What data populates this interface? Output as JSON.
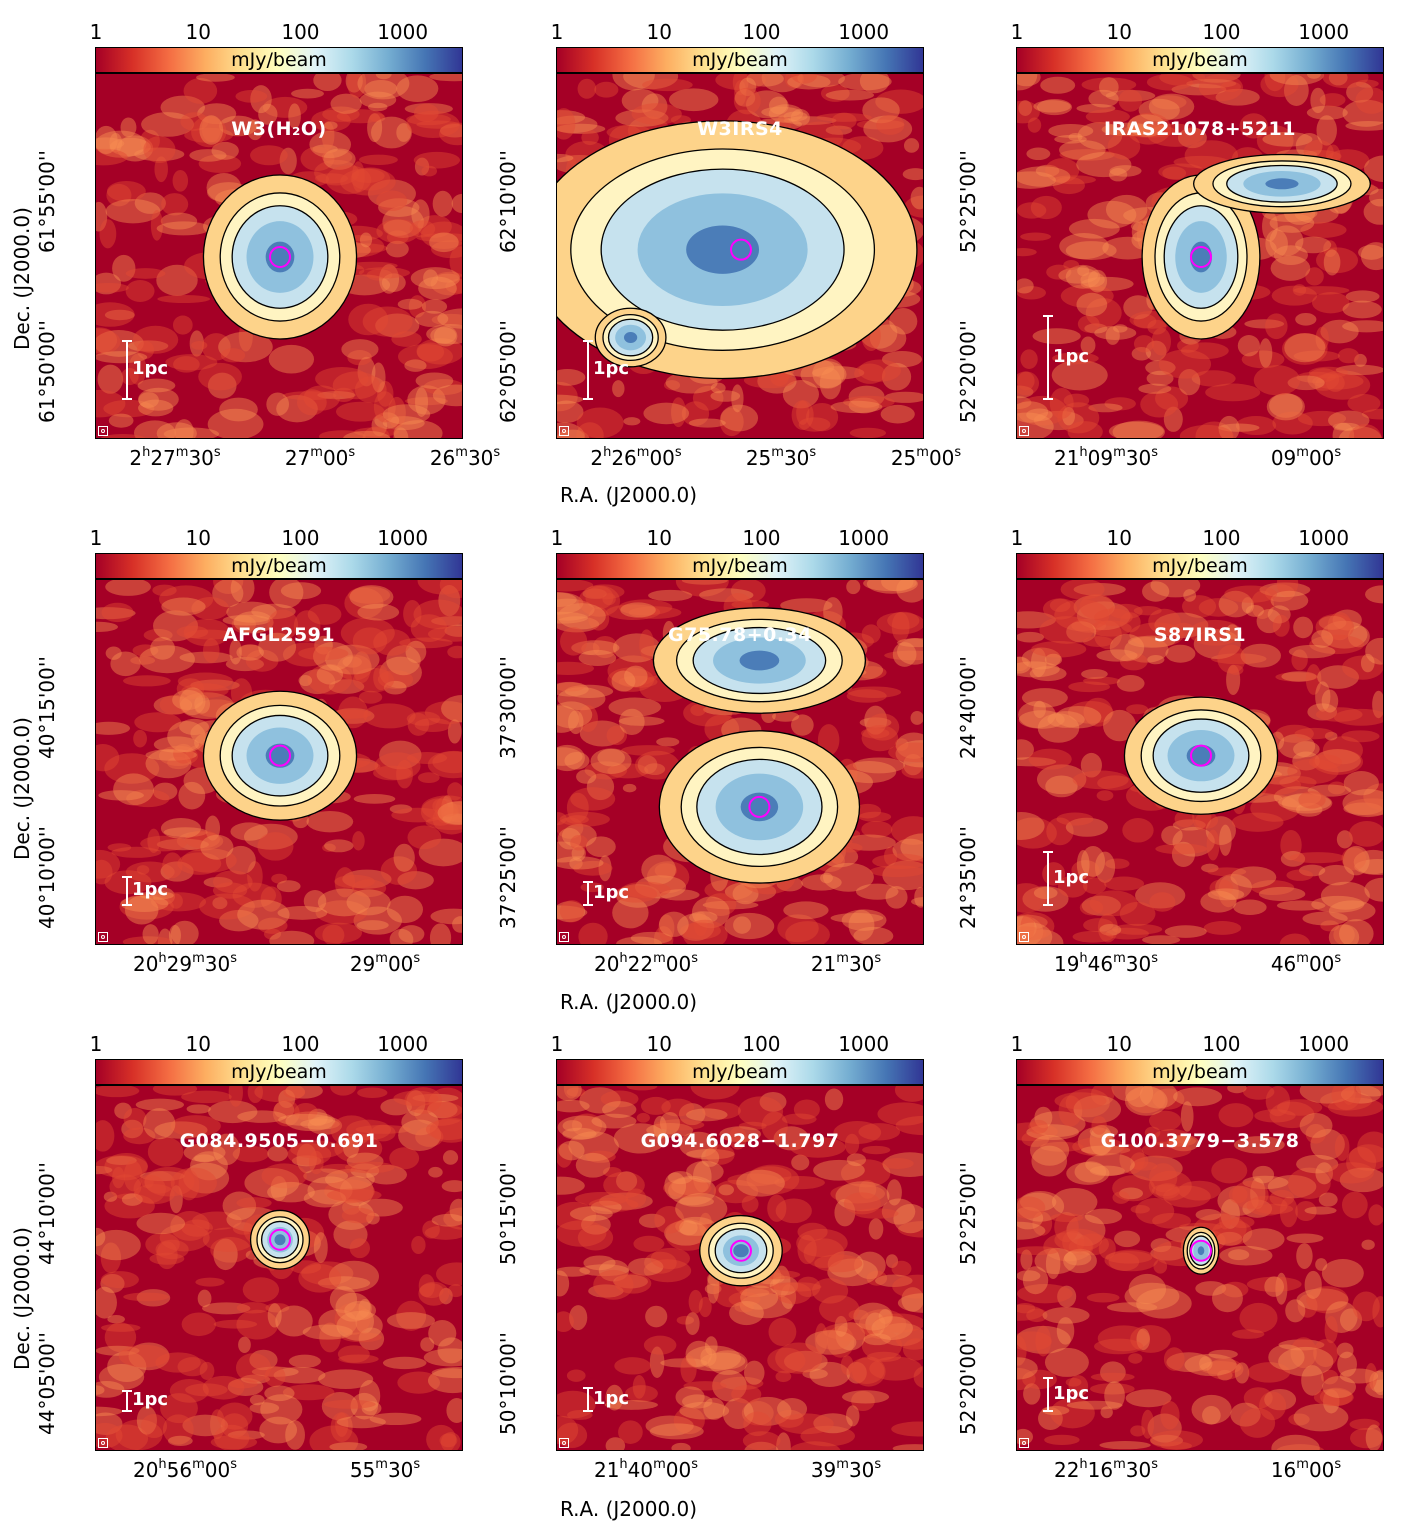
{
  "colorbar": {
    "unit": "mJy/beam",
    "ticks": [
      "1",
      "10",
      "100",
      "1000"
    ]
  },
  "axes": {
    "xlabel": "R.A. (J2000.0)",
    "ylabel": "Dec. (J2000.0)"
  },
  "scale_label": "1pc",
  "panels": [
    {
      "name": "W3(H₂O)",
      "yticks": [
        "61°55'00''",
        "61°50'00''"
      ],
      "ytick3": "61°",
      "xticks": [
        {
          "h": "2",
          "m": "27",
          "s": "30"
        },
        {
          "m": "27",
          "s": "00"
        },
        {
          "m": "26",
          "s": "30"
        }
      ]
    },
    {
      "name": "W3IRS4",
      "yticks": [
        "62°10'00''",
        "62°05'00''"
      ],
      "ytick3": "",
      "xticks": [
        {
          "h": "2",
          "m": "26",
          "s": "00"
        },
        {
          "m": "25",
          "s": "30"
        },
        {
          "m": "25",
          "s": "00"
        }
      ]
    },
    {
      "name": "IRAS21078+5211",
      "yticks": [
        "52°25'00''",
        "52°20'00''"
      ],
      "ytick3": "",
      "xticks": [
        {
          "h": "21",
          "m": "09",
          "s": "30"
        },
        {
          "m": "09",
          "s": "00"
        }
      ]
    },
    {
      "name": "AFGL2591",
      "yticks": [
        "40°15'00''",
        "40°10'00''"
      ],
      "ytick3": "40°",
      "xticks": [
        {
          "h": "20",
          "m": "29",
          "s": "30"
        },
        {
          "m": "29",
          "s": "00"
        }
      ]
    },
    {
      "name": "G75.78+0.34",
      "yticks": [
        "37°30'00''",
        "37°25'00''"
      ],
      "ytick3": "",
      "xticks": [
        {
          "h": "20",
          "m": "22",
          "s": "00"
        },
        {
          "m": "21",
          "s": "30"
        }
      ]
    },
    {
      "name": "S87IRS1",
      "yticks": [
        "24°40'00''",
        "24°35'00''"
      ],
      "ytick3": "",
      "xticks": [
        {
          "h": "19",
          "m": "46",
          "s": "30"
        },
        {
          "m": "46",
          "s": "00"
        }
      ]
    },
    {
      "name": "G084.9505−0.691",
      "yticks": [
        "44°10'00''",
        "44°05'00''"
      ],
      "ytick3": "",
      "xticks": [
        {
          "h": "20",
          "m": "56",
          "s": "00"
        },
        {
          "m": "55",
          "s": "30"
        }
      ]
    },
    {
      "name": "G094.6028−1.797",
      "yticks": [
        "50°15'00''",
        "50°10'00''"
      ],
      "ytick3": "",
      "xticks": [
        {
          "h": "21",
          "m": "40",
          "s": "00"
        },
        {
          "m": "39",
          "s": "30"
        }
      ]
    },
    {
      "name": "G100.3779−3.578",
      "yticks": [
        "52°25'00''",
        "52°20'00''"
      ],
      "ytick3": "",
      "xticks": [
        {
          "h": "22",
          "m": "16",
          "s": "30"
        },
        {
          "m": "16",
          "s": "00"
        }
      ]
    }
  ]
}
